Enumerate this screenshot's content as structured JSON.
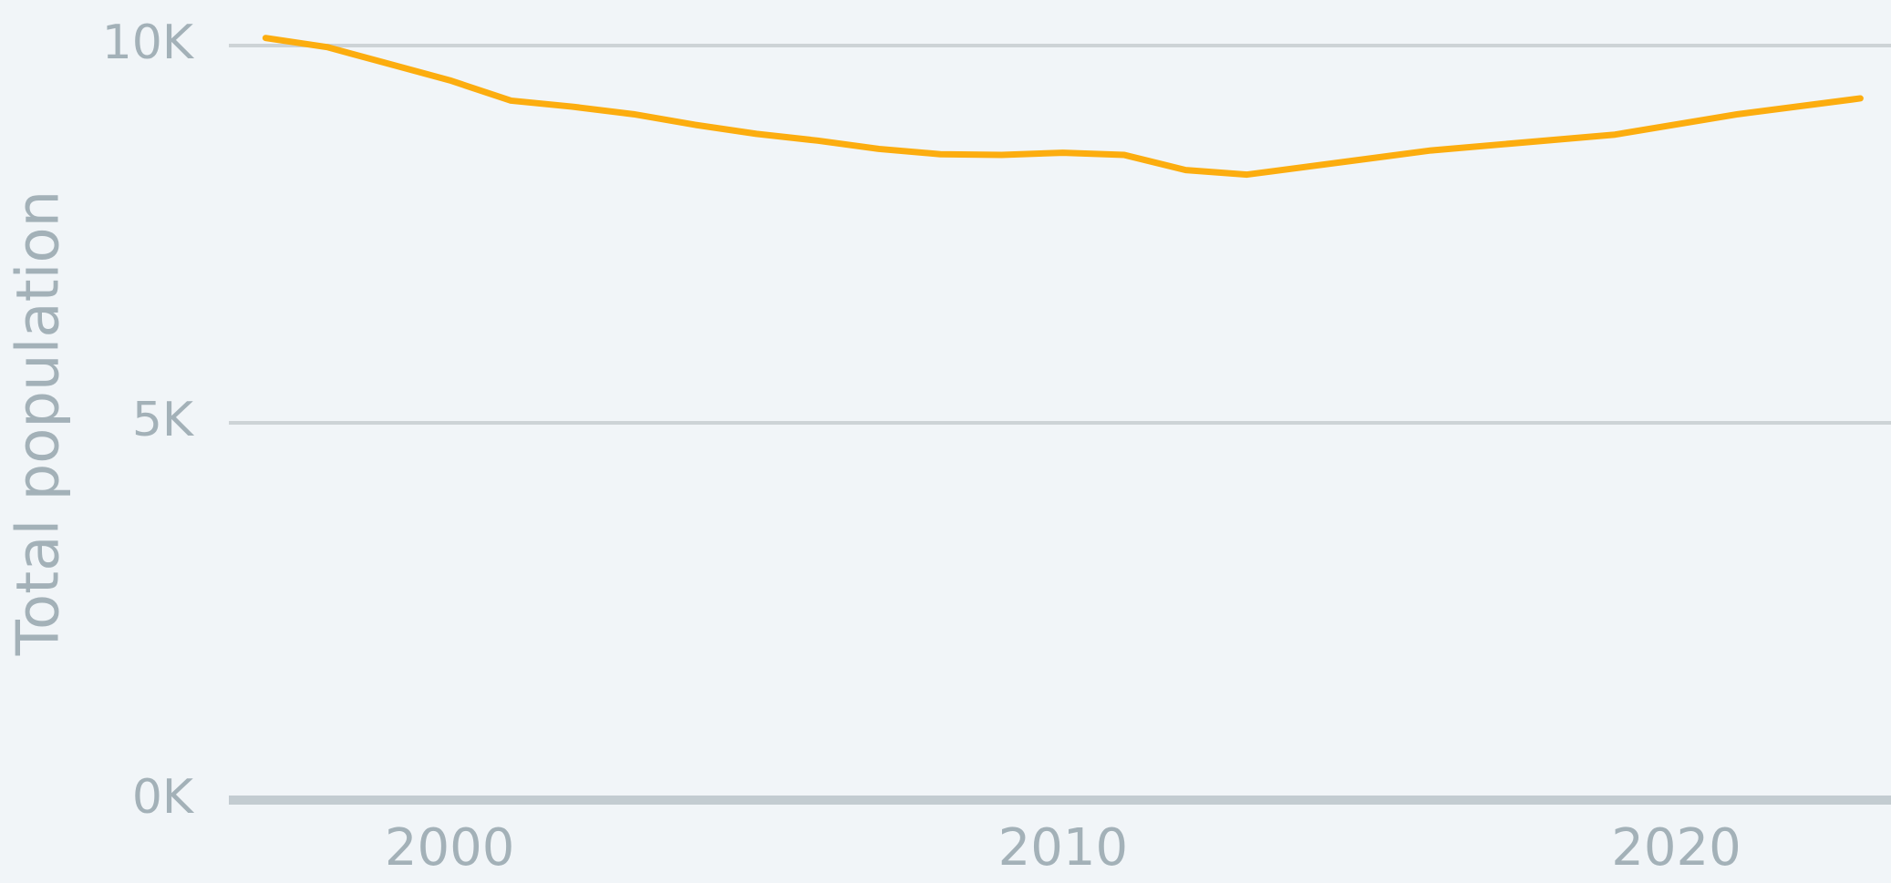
{
  "chart_data": {
    "type": "line",
    "y_label": "Total population",
    "x": [
      1997,
      1998,
      1999,
      2000,
      2001,
      2002,
      2003,
      2004,
      2005,
      2006,
      2007,
      2008,
      2009,
      2010,
      2011,
      2012,
      2013,
      2016,
      2019,
      2021,
      2023
    ],
    "series": [
      {
        "name": "Total population",
        "color": "#fcad0f",
        "values": [
          10100,
          9980,
          9760,
          9540,
          9270,
          9190,
          9090,
          8950,
          8830,
          8740,
          8630,
          8560,
          8550,
          8580,
          8550,
          8350,
          8290,
          8610,
          8820,
          9090,
          9300
        ]
      }
    ],
    "xlim": [
      1996.4,
      2023.5
    ],
    "xticks": [
      2000,
      2010,
      2020
    ],
    "ylim": [
      0,
      10000
    ],
    "yticks": [
      {
        "value": 0,
        "label": "0K"
      },
      {
        "value": 5000,
        "label": "5K"
      },
      {
        "value": 10000,
        "label": "10K"
      }
    ],
    "grid": true
  }
}
